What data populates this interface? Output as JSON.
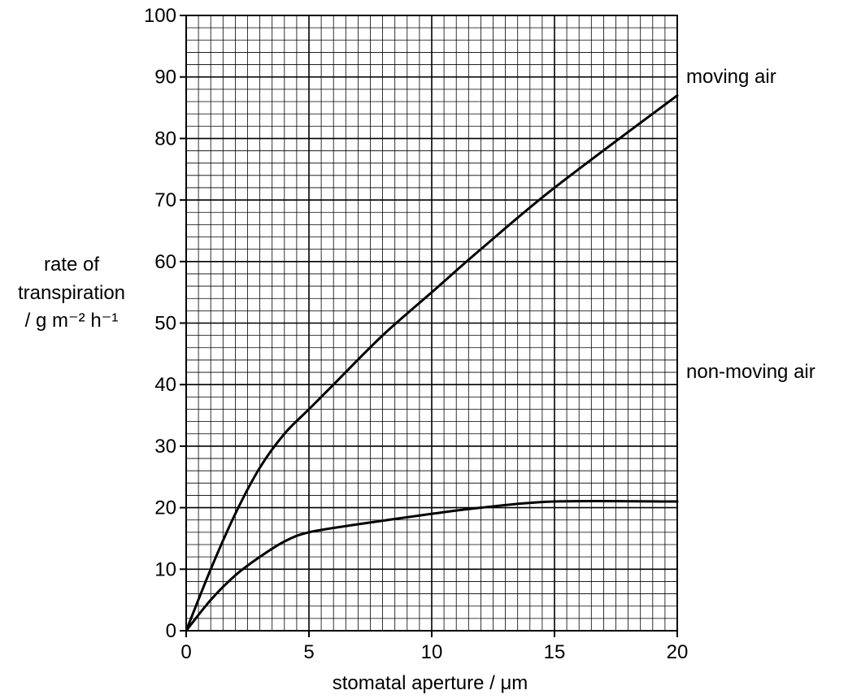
{
  "colors": {
    "grid": "#000000",
    "line": "#000000",
    "background": "#ffffff"
  },
  "chart_data": {
    "type": "line",
    "title": "",
    "xlabel": "stomatal aperture / μm",
    "ylabel": [
      "rate of",
      "transpiration",
      "/ g m⁻² h⁻¹"
    ],
    "xlim": [
      0,
      20
    ],
    "ylim": [
      0,
      100
    ],
    "grid": "major every 5 μm and 10 units, minor every 0.5 μm and 2 units",
    "x_ticks": [
      "0",
      "5",
      "10",
      "15",
      "20"
    ],
    "y_ticks": [
      "0",
      "10",
      "20",
      "30",
      "40",
      "50",
      "60",
      "70",
      "80",
      "90",
      "100"
    ],
    "legend": "series labels at right end of lines",
    "series": [
      {
        "name": "moving air",
        "points": [
          [
            0,
            0
          ],
          [
            1,
            10
          ],
          [
            2,
            19
          ],
          [
            3,
            26.5
          ],
          [
            4,
            32
          ],
          [
            5,
            36
          ],
          [
            6,
            40
          ],
          [
            8,
            48
          ],
          [
            10,
            55
          ],
          [
            12,
            62
          ],
          [
            15,
            72
          ],
          [
            20,
            87
          ]
        ]
      },
      {
        "name": "non-moving air",
        "points": [
          [
            0,
            0
          ],
          [
            1,
            5
          ],
          [
            2,
            9
          ],
          [
            3,
            12
          ],
          [
            4,
            14.5
          ],
          [
            5,
            16
          ],
          [
            7,
            17.3
          ],
          [
            10,
            19
          ],
          [
            12,
            20
          ],
          [
            15,
            21
          ],
          [
            20,
            21
          ]
        ]
      }
    ]
  }
}
